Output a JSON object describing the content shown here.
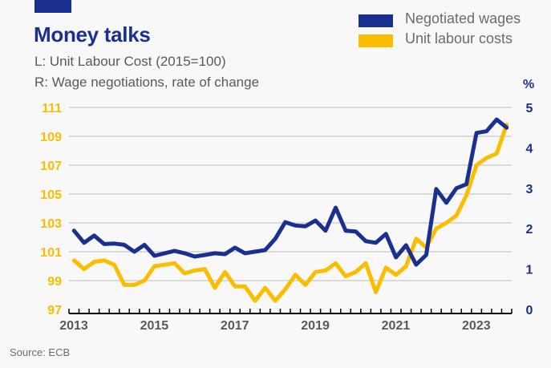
{
  "header": {
    "title": "Money talks",
    "subtitle_left": "L: Unit Labour Cost (2015=100)",
    "subtitle_right": "R: Wage negotiations, rate of change"
  },
  "legend": [
    {
      "label": "Negotiated wages",
      "color": "#1a2f8f"
    },
    {
      "label": "Unit labour costs",
      "color": "#fbbd00"
    }
  ],
  "right_axis_unit": "%",
  "source": "Source: ECB",
  "chart_data": {
    "type": "line",
    "title": "Money talks",
    "xlabel": "",
    "ylabel_left": "Unit Labour Cost (2015=100)",
    "ylabel_right": "Wage negotiations, rate of change (%)",
    "x_ticks": [
      "2013",
      "2015",
      "2017",
      "2019",
      "2021",
      "2023"
    ],
    "x_range": [
      2013.0,
      2024.0
    ],
    "x_frequency": "quarterly",
    "ylim_left": [
      97,
      111
    ],
    "yticks_left": [
      "97",
      "99",
      "101",
      "103",
      "105",
      "107",
      "109",
      "111"
    ],
    "ylim_right": [
      0,
      5
    ],
    "yticks_right": [
      "0",
      "1",
      "2",
      "3",
      "4",
      "5"
    ],
    "grid": true,
    "legend_position": "top-right",
    "x": [
      "2013Q1",
      "2013Q2",
      "2013Q3",
      "2013Q4",
      "2014Q1",
      "2014Q2",
      "2014Q3",
      "2014Q4",
      "2015Q1",
      "2015Q2",
      "2015Q3",
      "2015Q4",
      "2016Q1",
      "2016Q2",
      "2016Q3",
      "2016Q4",
      "2017Q1",
      "2017Q2",
      "2017Q3",
      "2017Q4",
      "2018Q1",
      "2018Q2",
      "2018Q3",
      "2018Q4",
      "2019Q1",
      "2019Q2",
      "2019Q3",
      "2019Q4",
      "2020Q1",
      "2020Q2",
      "2020Q3",
      "2020Q4",
      "2021Q1",
      "2021Q2",
      "2021Q3",
      "2021Q4",
      "2022Q1",
      "2022Q2",
      "2022Q3",
      "2022Q4",
      "2023Q1",
      "2023Q2",
      "2023Q3",
      "2023Q4"
    ],
    "series": [
      {
        "name": "Negotiated wages",
        "axis": "right",
        "color": "#1a2f8f",
        "values": [
          1.95,
          1.65,
          1.83,
          1.62,
          1.63,
          1.6,
          1.43,
          1.6,
          1.33,
          1.39,
          1.45,
          1.39,
          1.31,
          1.35,
          1.39,
          1.37,
          1.53,
          1.39,
          1.43,
          1.47,
          1.75,
          2.16,
          2.08,
          2.06,
          2.2,
          1.95,
          2.52,
          1.95,
          1.93,
          1.69,
          1.65,
          1.87,
          1.29,
          1.59,
          1.11,
          1.35,
          2.98,
          2.64,
          3.0,
          3.1,
          4.37,
          4.41,
          4.7,
          4.5
        ]
      },
      {
        "name": "Unit labour costs",
        "axis": "left",
        "color": "#fbbd00",
        "values": [
          100.4,
          99.8,
          100.3,
          100.4,
          100.1,
          98.7,
          98.7,
          99.0,
          100.0,
          100.1,
          100.2,
          99.5,
          99.7,
          99.8,
          98.5,
          99.6,
          98.6,
          98.6,
          97.6,
          98.5,
          97.6,
          98.4,
          99.4,
          98.7,
          99.6,
          99.7,
          100.2,
          99.3,
          99.6,
          100.2,
          98.2,
          99.9,
          99.4,
          100.0,
          101.9,
          101.3,
          102.6,
          103.0,
          103.5,
          104.9,
          107.0,
          107.5,
          107.8,
          109.8
        ]
      }
    ]
  }
}
